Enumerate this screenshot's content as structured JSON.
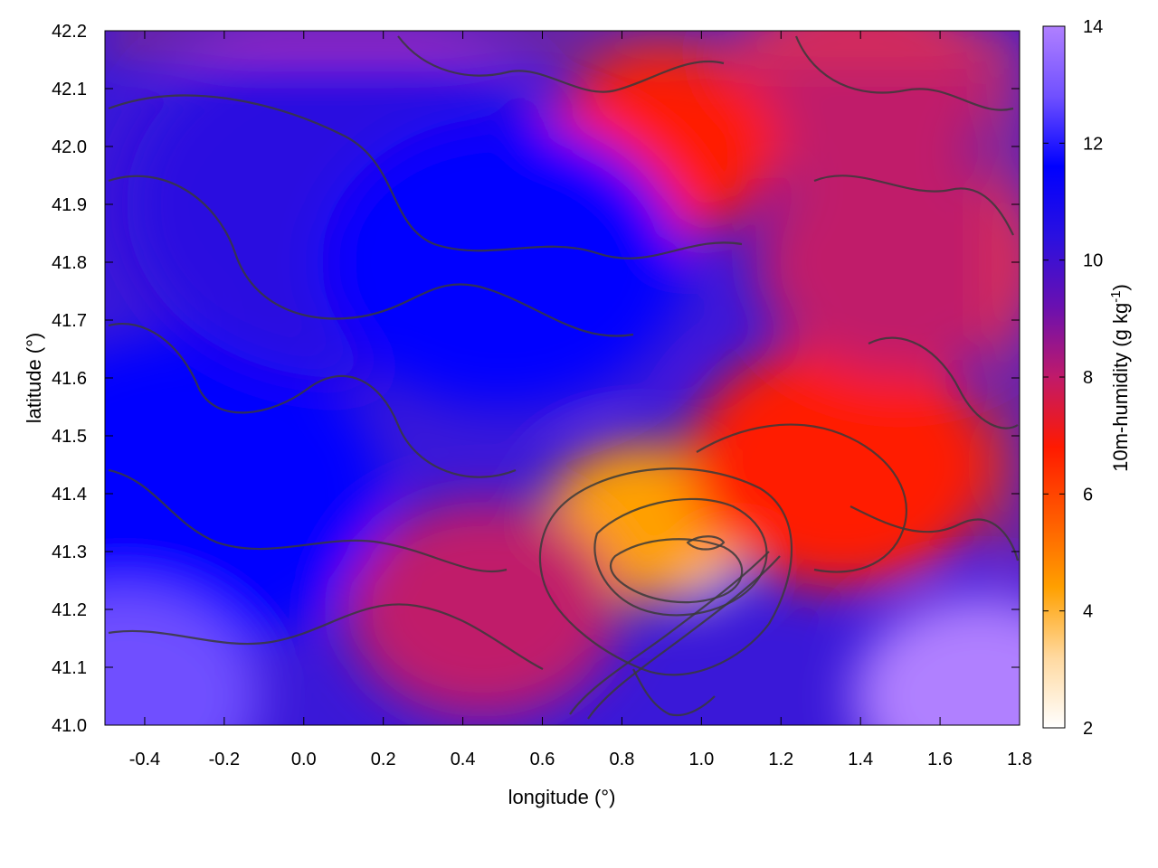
{
  "chart_data": {
    "type": "heatmap",
    "title": "",
    "xlabel": "longitude (°)",
    "ylabel": "latitude (°)",
    "colorbar_label_main": "10m-humidity (g kg",
    "colorbar_label_sup": "-1",
    "colorbar_label_end": ")",
    "xlim": [
      -0.5,
      1.8
    ],
    "ylim": [
      41.0,
      42.2
    ],
    "clim": [
      2,
      14
    ],
    "x_ticks": [
      -0.4,
      -0.2,
      0.0,
      0.2,
      0.4,
      0.6,
      0.8,
      1.0,
      1.2,
      1.4,
      1.6,
      1.8
    ],
    "x_tick_labels": [
      "-0.4",
      "-0.2",
      "0.0",
      "0.2",
      "0.4",
      "0.6",
      "0.8",
      "1.0",
      "1.2",
      "1.4",
      "1.6",
      "1.8"
    ],
    "y_ticks": [
      41.0,
      41.1,
      41.2,
      41.3,
      41.4,
      41.5,
      41.6,
      41.7,
      41.8,
      41.9,
      42.0,
      42.1,
      42.2
    ],
    "y_tick_labels": [
      "41.0",
      "41.1",
      "41.2",
      "41.3",
      "41.4",
      "41.5",
      "41.6",
      "41.7",
      "41.8",
      "41.9",
      "42.0",
      "42.1",
      "42.2"
    ],
    "colorbar_ticks": [
      2,
      4,
      6,
      8,
      10,
      12,
      14
    ],
    "colorbar_tick_labels": [
      "2",
      "4",
      "6",
      "8",
      "10",
      "12",
      "14"
    ],
    "colormap": [
      "#ffffff",
      "#ffd9a0",
      "#ffa000",
      "#ff5a00",
      "#ff1a00",
      "#c01a6a",
      "#6a10b0",
      "#2a10e0",
      "#0000ff",
      "#7050ff",
      "#b080ff"
    ],
    "field_features": [
      {
        "lon": 0.95,
        "lat": 41.3,
        "humidity": 2.5
      },
      {
        "lon": 0.85,
        "lat": 41.35,
        "humidity": 4
      },
      {
        "lon": 1.35,
        "lat": 41.45,
        "humidity": 7
      },
      {
        "lon": 1.5,
        "lat": 41.8,
        "humidity": 8
      },
      {
        "lon": 1.4,
        "lat": 42.1,
        "humidity": 7.5
      },
      {
        "lon": 0.9,
        "lat": 42.0,
        "humidity": 7
      },
      {
        "lon": 0.45,
        "lat": 41.2,
        "humidity": 8
      },
      {
        "lon": -0.3,
        "lat": 41.4,
        "humidity": 12
      },
      {
        "lon": 0.1,
        "lat": 41.9,
        "humidity": 10.5
      },
      {
        "lon": 0.5,
        "lat": 41.8,
        "humidity": 11.5
      },
      {
        "lon": -0.45,
        "lat": 41.05,
        "humidity": 12.5
      },
      {
        "lon": 1.7,
        "lat": 41.05,
        "humidity": 13.5
      }
    ]
  }
}
